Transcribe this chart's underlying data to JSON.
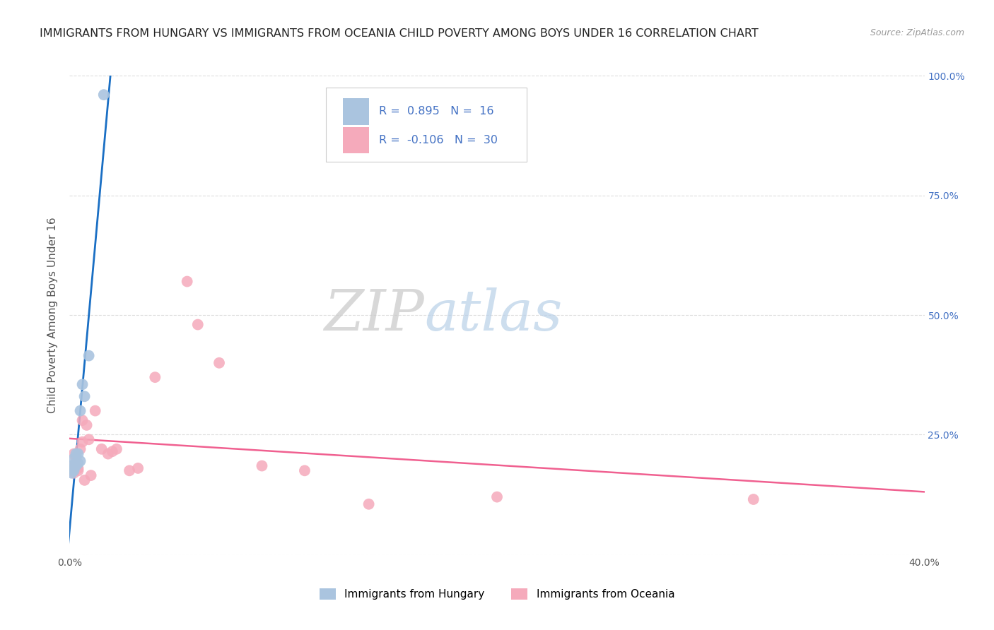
{
  "title": "IMMIGRANTS FROM HUNGARY VS IMMIGRANTS FROM OCEANIA CHILD POVERTY AMONG BOYS UNDER 16 CORRELATION CHART",
  "source": "Source: ZipAtlas.com",
  "ylabel": "Child Poverty Among Boys Under 16",
  "xlim": [
    0.0,
    0.4
  ],
  "ylim": [
    0.0,
    1.0
  ],
  "hungary_x": [
    0.001,
    0.001,
    0.002,
    0.002,
    0.002,
    0.003,
    0.003,
    0.003,
    0.004,
    0.004,
    0.005,
    0.005,
    0.006,
    0.007,
    0.009,
    0.016
  ],
  "hungary_y": [
    0.17,
    0.185,
    0.175,
    0.18,
    0.2,
    0.185,
    0.19,
    0.21,
    0.19,
    0.21,
    0.195,
    0.3,
    0.355,
    0.33,
    0.415,
    0.96
  ],
  "oceania_x": [
    0.001,
    0.001,
    0.002,
    0.002,
    0.003,
    0.004,
    0.004,
    0.005,
    0.006,
    0.006,
    0.007,
    0.008,
    0.009,
    0.01,
    0.012,
    0.015,
    0.018,
    0.02,
    0.022,
    0.028,
    0.032,
    0.04,
    0.055,
    0.06,
    0.07,
    0.09,
    0.11,
    0.14,
    0.2,
    0.32
  ],
  "oceania_y": [
    0.175,
    0.185,
    0.17,
    0.21,
    0.2,
    0.175,
    0.18,
    0.22,
    0.28,
    0.235,
    0.155,
    0.27,
    0.24,
    0.165,
    0.3,
    0.22,
    0.21,
    0.215,
    0.22,
    0.175,
    0.18,
    0.37,
    0.57,
    0.48,
    0.4,
    0.185,
    0.175,
    0.105,
    0.12,
    0.115
  ],
  "hungary_color": "#aac4df",
  "oceania_color": "#f5aabb",
  "hungary_line_color": "#1a6fc4",
  "oceania_line_color": "#f06090",
  "legend_R_hungary": "0.895",
  "legend_N_hungary": "16",
  "legend_R_oceania": "-0.106",
  "legend_N_oceania": "30",
  "watermark_zip": "ZIP",
  "watermark_atlas": "atlas",
  "watermark_zip_color": "#c8c8c8",
  "watermark_atlas_color": "#b8d0e8",
  "background_color": "#ffffff",
  "grid_color": "#dddddd",
  "title_fontsize": 11.5,
  "axis_label_fontsize": 11,
  "tick_fontsize": 10,
  "legend_label_color": "#4472c4"
}
